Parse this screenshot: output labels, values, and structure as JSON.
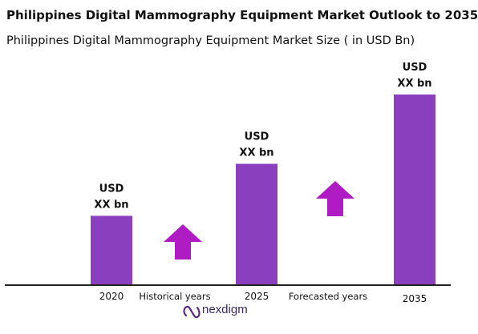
{
  "header": {
    "title": "Philippines Digital Mammography  Equipment Market Outlook to 2035",
    "subtitle": "Philippines Digital Mammography  Equipment Market Size  ( in USD Bn)"
  },
  "logo": {
    "text": "nexdigm",
    "icon": "nexdigm-logo-icon"
  },
  "colors": {
    "bar": "#8a3fbf",
    "arrow": "#b01cc4",
    "axis": "#222222"
  },
  "chart_data": {
    "type": "bar",
    "title": "Philippines Digital Mammography  Equipment Market Size  ( in USD Bn)",
    "categories": [
      "2020",
      "2025",
      "2035"
    ],
    "values": [
      1.0,
      1.75,
      2.75
    ],
    "data_labels": [
      [
        "USD",
        "XX bn"
      ],
      [
        "USD",
        "XX bn"
      ],
      [
        "USD",
        "XX bn"
      ]
    ],
    "period_labels": [
      "Historical years",
      "Forecasted years"
    ],
    "ylim": [
      0,
      2.75
    ],
    "grid": false,
    "legend": "none"
  }
}
